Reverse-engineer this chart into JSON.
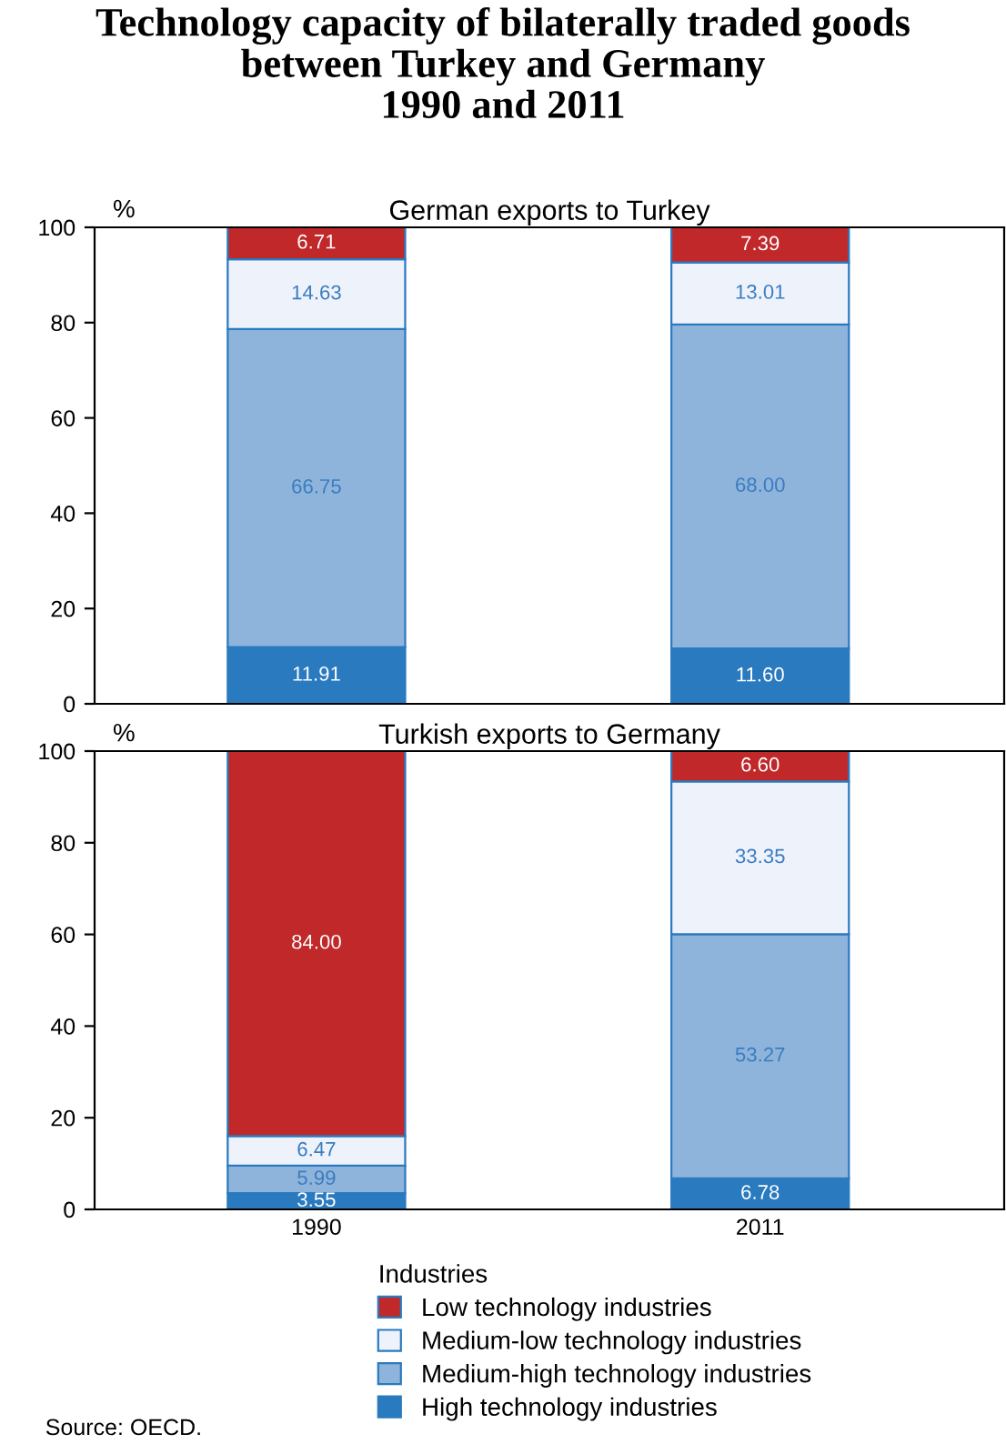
{
  "chart_data": [
    {
      "type": "bar",
      "stacked": true,
      "title": "Technology capacity of bilaterally traded goods\nbetween Turkey and Germany\n1990 and 2011",
      "subtitle": "German exports to Turkey",
      "ylabel": "%",
      "categories": [
        "1990",
        "2011"
      ],
      "ylim": [
        0,
        100
      ],
      "yticks": [
        0,
        20,
        40,
        60,
        80,
        100
      ],
      "tick_labels": "y",
      "grid": false,
      "legend": false,
      "series": [
        {
          "color": "#2a7abf",
          "values": [
            11.91,
            11.6
          ],
          "value_labels": [
            "11.91",
            "11.60"
          ]
        },
        {
          "color": "#8fb4dc",
          "values": [
            66.75,
            68.0
          ],
          "value_labels": [
            "66.75",
            "68.00"
          ]
        },
        {
          "color": "#eef2fb",
          "values": [
            14.63,
            13.01
          ],
          "value_labels": [
            "14.63",
            "13.01"
          ]
        },
        {
          "color": "#c0282a",
          "values": [
            6.71,
            7.39
          ],
          "value_labels": [
            "6.71",
            "7.39"
          ]
        }
      ]
    },
    {
      "type": "bar",
      "stacked": true,
      "subtitle": "Turkish exports to Germany",
      "ylabel": "%",
      "legend_title": "Industries",
      "categories": [
        "1990",
        "2011"
      ],
      "ylim": [
        0,
        100
      ],
      "yticks": [
        0,
        20,
        40,
        60,
        80,
        100
      ],
      "grid": false,
      "legend": "bottom",
      "annotations": [
        "Source: OECD."
      ],
      "series": [
        {
          "name": "High technology industries",
          "color": "#2a7abf",
          "values": [
            3.55,
            6.78
          ],
          "value_labels": [
            "3.55",
            "6.78"
          ]
        },
        {
          "name": "Medium-high technology industries",
          "color": "#8fb4dc",
          "values": [
            5.99,
            53.27
          ],
          "value_labels": [
            "5.99",
            "53.27"
          ]
        },
        {
          "name": "Medium-low technology industries",
          "color": "#eef2fb",
          "values": [
            6.47,
            33.35
          ],
          "value_labels": [
            "6.47",
            "33.35"
          ]
        },
        {
          "name": "Low technology industries",
          "color": "#c0282a",
          "values": [
            84.0,
            6.6
          ],
          "value_labels": [
            "84.00",
            "6.60"
          ]
        }
      ]
    }
  ]
}
